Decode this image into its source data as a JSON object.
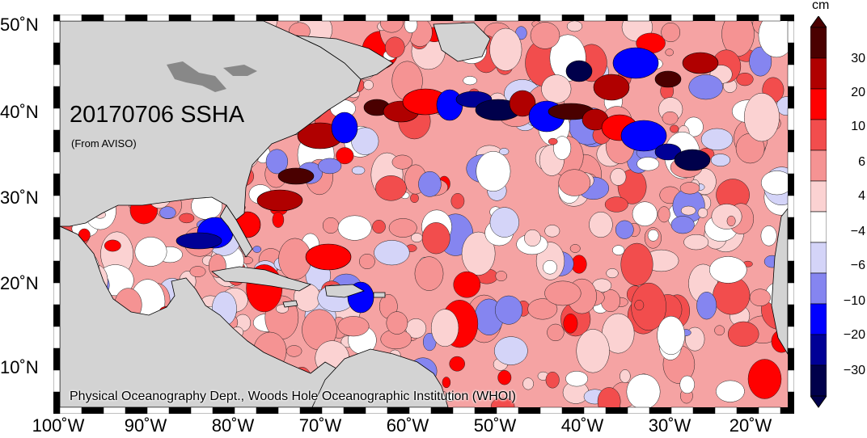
{
  "map": {
    "title": "20170706 SSHA",
    "source_note": "(From AVISO)",
    "credit": "Physical Oceanography Dept., Woods Hole Oceanographic Institution (WHOI)",
    "lat_labels": [
      "50˚N",
      "40˚N",
      "30˚N",
      "20˚N",
      "10˚N"
    ],
    "lon_labels": [
      "100˚W",
      "90˚W",
      "80˚W",
      "70˚W",
      "60˚W",
      "50˚W",
      "40˚W",
      "30˚W",
      "20˚W"
    ],
    "land_color": "#d3d3d3",
    "no_anomaly_color": "#ffffff"
  },
  "colorbar": {
    "unit": "cm",
    "tick_labels": [
      "30",
      "20",
      "10",
      "6",
      "4",
      "−4",
      "−6",
      "−10",
      "−20",
      "−30"
    ],
    "colors_top_to_bottom": [
      "#4a0000",
      "#b00000",
      "#ff0000",
      "#f24d4d",
      "#f59393",
      "#fbd2d2",
      "#ffffff",
      "#d4d4f8",
      "#8585f0",
      "#0000ff",
      "#000096",
      "#00004b"
    ]
  }
}
